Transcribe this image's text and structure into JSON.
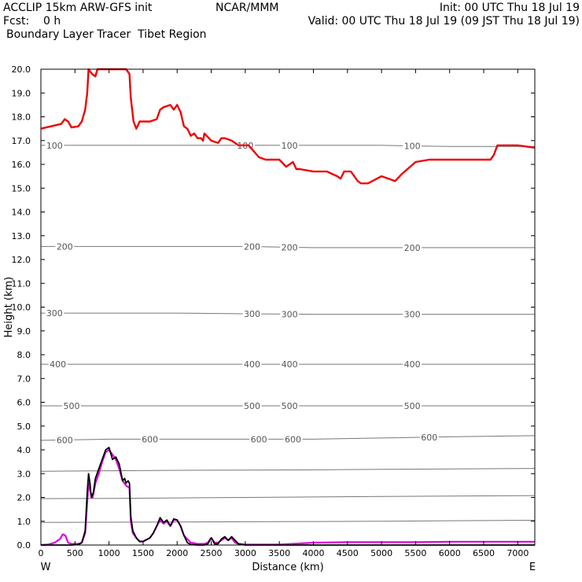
{
  "header": {
    "line1_left": "ACCLIP 15km ARW-GFS init",
    "line1_center": "NCAR/MMM",
    "line1_right": "Init: 00 UTC Thu 18 Jul 19",
    "line2_left": "Fcst:    0 h",
    "line2_right": "Valid: 00 UTC Thu 18 Jul 19 (09 JST Thu 18 Jul 19)",
    "line3_left": "Boundary Layer Tracer  Tibet Region"
  },
  "chart_data": {
    "type": "line",
    "title": "Boundary Layer Tracer  Tibet Region",
    "xlabel": "Distance (km)",
    "ylabel": "Height (km)",
    "xlim": [
      0,
      7250
    ],
    "ylim": [
      0,
      20
    ],
    "x_ticks": [
      0,
      500,
      1000,
      1500,
      2000,
      2500,
      3000,
      3500,
      4000,
      4500,
      5000,
      5500,
      6000,
      6500,
      7000
    ],
    "y_ticks": [
      "0.0",
      "1.0",
      "2.0",
      "3.0",
      "4.0",
      "5.0",
      "6.0",
      "7.0",
      "8.0",
      "9.0",
      "10.0",
      "11.0",
      "12.0",
      "13.0",
      "14.0",
      "15.0",
      "16.0",
      "17.0",
      "18.0",
      "19.0",
      "20.0"
    ],
    "x_end_labels": {
      "left": "W",
      "right": "E"
    },
    "colors": {
      "tropopause": "#ee0000",
      "terrain": "#000000",
      "tracer": "#dd00dd",
      "pressure": "#777777"
    },
    "pressure_contours": [
      {
        "level": "100",
        "y": [
          16.8,
          16.8,
          16.8,
          16.8,
          16.8,
          16.8,
          16.75,
          16.75
        ],
        "labels_x": [
          200,
          3000,
          3650,
          5450
        ]
      },
      {
        "level": "200",
        "y": [
          12.55,
          12.55,
          12.55,
          12.55,
          12.5,
          12.5,
          12.5,
          12.5
        ],
        "labels_x": [
          350,
          3100,
          3650,
          5450
        ]
      },
      {
        "level": "300",
        "y": [
          9.75,
          9.75,
          9.75,
          9.72,
          9.7,
          9.7,
          9.7,
          9.7
        ],
        "labels_x": [
          200,
          3100,
          3650,
          5450
        ]
      },
      {
        "level": "400",
        "y": [
          7.6,
          7.6,
          7.6,
          7.6,
          7.6,
          7.6,
          7.6,
          7.6
        ],
        "labels_x": [
          250,
          3100,
          3650,
          5450
        ]
      },
      {
        "level": "500",
        "y": [
          5.85,
          5.85,
          5.85,
          5.85,
          5.85,
          5.85,
          5.85,
          5.85
        ],
        "labels_x": [
          450,
          3100,
          3650,
          5450
        ]
      },
      {
        "level": "600",
        "y": [
          4.4,
          4.45,
          4.45,
          4.45,
          4.45,
          4.5,
          4.55,
          4.6
        ],
        "labels_x": [
          350,
          1600,
          3200,
          3700,
          5700
        ]
      },
      {
        "level": "",
        "y": [
          3.1,
          3.12,
          3.14,
          3.15,
          3.16,
          3.18,
          3.2,
          3.22
        ],
        "labels_x": []
      },
      {
        "level": "",
        "y": [
          1.95,
          1.96,
          1.98,
          2.0,
          2.02,
          2.04,
          2.06,
          2.08
        ],
        "labels_x": []
      },
      {
        "level": "",
        "y": [
          0.95,
          0.96,
          0.97,
          0.98,
          0.99,
          1.0,
          1.02,
          1.04
        ],
        "labels_x": []
      }
    ],
    "contour_x": [
      0,
      1000,
      2000,
      3000,
      4000,
      5000,
      6000,
      7250
    ],
    "series": [
      {
        "key": "tropopause",
        "x": [
          0,
          150,
          300,
          350,
          400,
          450,
          550,
          600,
          650,
          680,
          700,
          750,
          800,
          830,
          850,
          1000,
          1150,
          1250,
          1300,
          1320,
          1360,
          1400,
          1450,
          1500,
          1600,
          1700,
          1750,
          1800,
          1900,
          1950,
          2000,
          2050,
          2100,
          2150,
          2200,
          2250,
          2300,
          2350,
          2380,
          2400,
          2500,
          2600,
          2650,
          2700,
          2800,
          2900,
          3050,
          3200,
          3300,
          3500,
          3600,
          3700,
          3750,
          3800,
          4000,
          4200,
          4350,
          4400,
          4450,
          4550,
          4600,
          4650,
          4700,
          4800,
          5000,
          5100,
          5200,
          5300,
          5500,
          5700,
          6000,
          6300,
          6600,
          6650,
          6700,
          6800,
          7000,
          7250
        ],
        "y": [
          17.5,
          17.6,
          17.7,
          17.9,
          17.8,
          17.55,
          17.6,
          17.8,
          18.3,
          19.0,
          20.0,
          19.8,
          19.7,
          20.0,
          20.0,
          20.0,
          20.0,
          20.0,
          19.8,
          18.8,
          17.8,
          17.5,
          17.8,
          17.8,
          17.8,
          17.9,
          18.3,
          18.4,
          18.5,
          18.3,
          18.5,
          18.2,
          17.6,
          17.5,
          17.2,
          17.3,
          17.1,
          17.1,
          17.0,
          17.3,
          17.0,
          16.9,
          17.1,
          17.1,
          17.0,
          16.8,
          16.8,
          16.3,
          16.2,
          16.2,
          15.9,
          16.1,
          15.8,
          15.8,
          15.7,
          15.7,
          15.5,
          15.4,
          15.7,
          15.7,
          15.5,
          15.3,
          15.2,
          15.2,
          15.5,
          15.4,
          15.3,
          15.6,
          16.1,
          16.2,
          16.2,
          16.2,
          16.2,
          16.4,
          16.8,
          16.8,
          16.8,
          16.7
        ]
      },
      {
        "key": "tracer",
        "x": [
          0,
          100,
          200,
          280,
          320,
          360,
          400,
          450,
          550,
          600,
          650,
          680,
          700,
          730,
          760,
          800,
          850,
          900,
          950,
          1000,
          1050,
          1100,
          1150,
          1200,
          1250,
          1300,
          1320,
          1350,
          1400,
          1450,
          1500,
          1600,
          1650,
          1700,
          1750,
          1800,
          1850,
          1900,
          1950,
          2000,
          2050,
          2100,
          2200,
          2300,
          2400,
          2450,
          2500,
          2550,
          2600,
          2650,
          2700,
          2750,
          2800,
          2850,
          2900,
          3000,
          3500,
          4000,
          4500,
          5000,
          5500,
          6000,
          6500,
          7000,
          7250
        ],
        "y": [
          0,
          0.02,
          0.1,
          0.25,
          0.45,
          0.4,
          0.1,
          0.05,
          0.05,
          0.1,
          0.5,
          1.8,
          2.6,
          2.2,
          2.0,
          2.6,
          3.0,
          3.5,
          3.9,
          4.0,
          3.8,
          3.6,
          3.2,
          2.7,
          2.5,
          2.4,
          1.0,
          0.5,
          0.3,
          0.15,
          0.15,
          0.3,
          0.5,
          0.8,
          1.05,
          0.9,
          1.0,
          0.8,
          1.05,
          1.05,
          0.8,
          0.4,
          0.1,
          0.05,
          0.05,
          0.1,
          0.3,
          0.1,
          0.1,
          0.2,
          0.3,
          0.2,
          0.3,
          0.1,
          0.05,
          0.02,
          0.02,
          0.1,
          0.12,
          0.12,
          0.12,
          0.14,
          0.14,
          0.14,
          0.14
        ]
      },
      {
        "key": "terrain",
        "x": [
          0,
          100,
          200,
          300,
          400,
          450,
          550,
          600,
          650,
          680,
          700,
          720,
          740,
          770,
          800,
          850,
          900,
          950,
          1000,
          1020,
          1050,
          1100,
          1150,
          1200,
          1230,
          1250,
          1280,
          1300,
          1320,
          1350,
          1400,
          1450,
          1500,
          1600,
          1650,
          1700,
          1750,
          1800,
          1850,
          1900,
          1950,
          2000,
          2050,
          2100,
          2150,
          2200,
          2300,
          2400,
          2450,
          2500,
          2550,
          2600,
          2650,
          2700,
          2750,
          2800,
          2850,
          2900,
          3000,
          3500,
          7250
        ],
        "y": [
          0,
          0,
          0,
          0,
          0,
          0,
          0.02,
          0.1,
          0.6,
          2.2,
          3.0,
          2.6,
          2.0,
          2.2,
          2.8,
          3.2,
          3.6,
          4.0,
          4.1,
          3.9,
          3.6,
          3.7,
          3.4,
          2.7,
          2.8,
          2.6,
          2.7,
          2.6,
          1.2,
          0.6,
          0.3,
          0.15,
          0.15,
          0.3,
          0.5,
          0.8,
          1.15,
          0.95,
          1.05,
          0.8,
          1.1,
          1.05,
          0.8,
          0.4,
          0.1,
          0.02,
          0,
          0,
          0.05,
          0.3,
          0.05,
          0.05,
          0.25,
          0.35,
          0.2,
          0.35,
          0.2,
          0.05,
          0,
          0,
          0
        ]
      }
    ]
  }
}
